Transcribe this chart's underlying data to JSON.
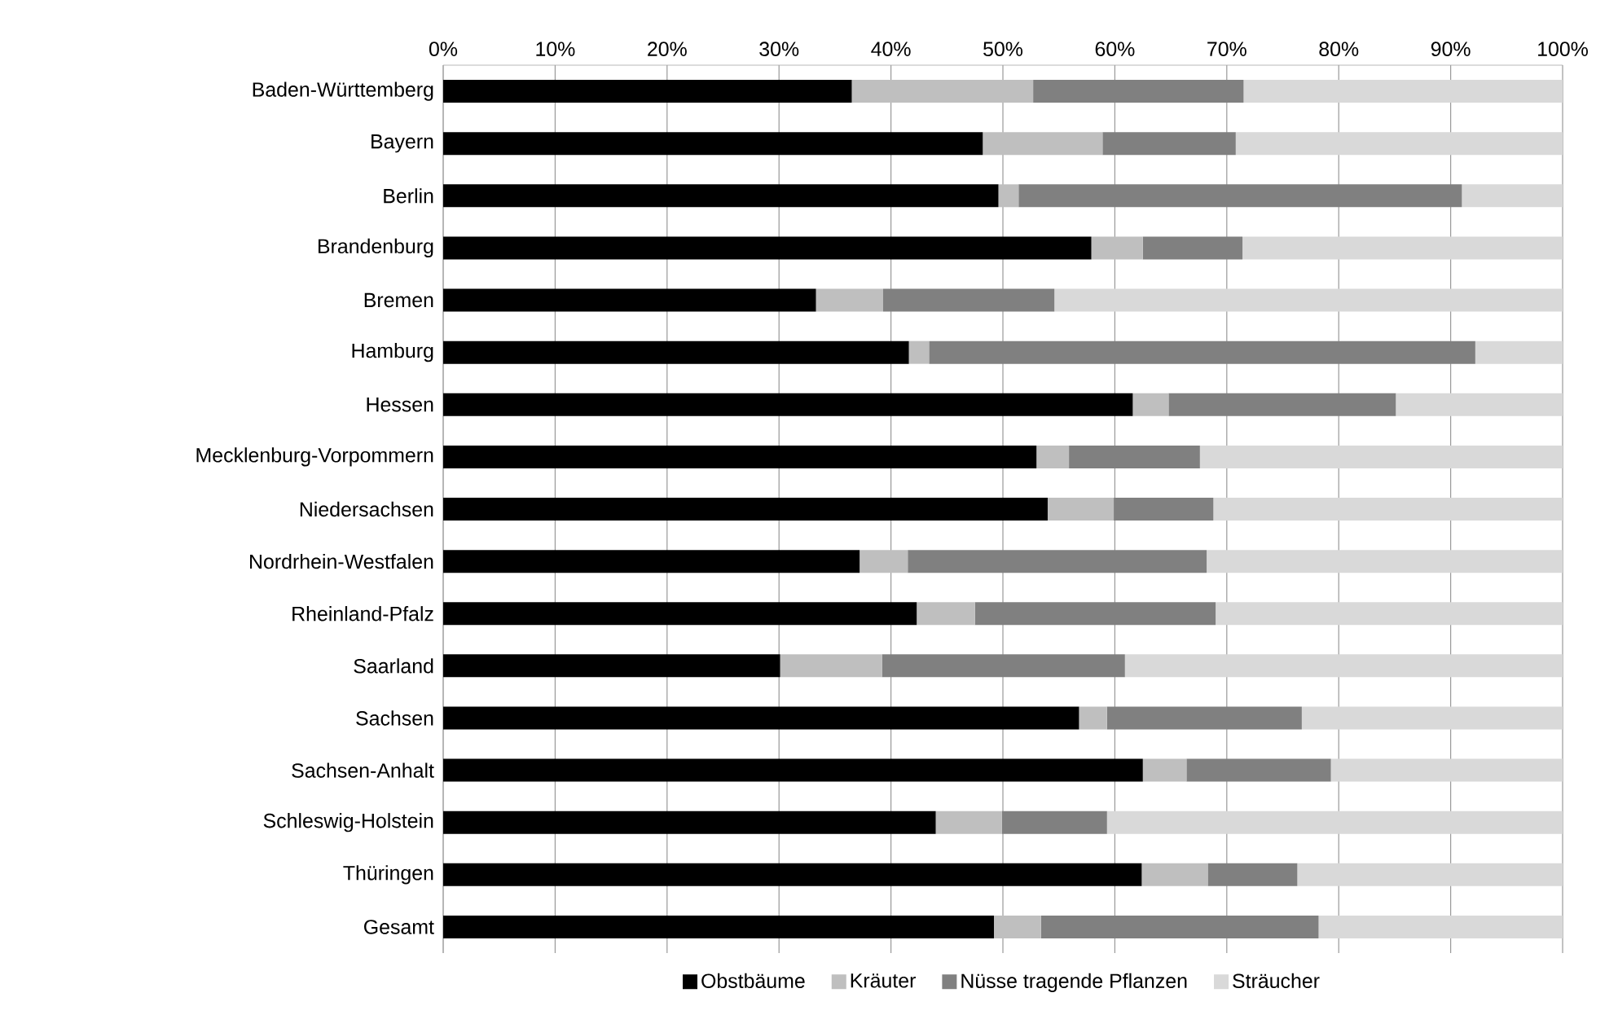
{
  "chart_data": {
    "type": "bar",
    "orientation": "horizontal",
    "stacked": true,
    "categories": [
      "Baden-Württemberg",
      "Bayern",
      "Berlin",
      "Brandenburg",
      "Bremen",
      "Hamburg",
      "Hessen",
      "Mecklenburg-Vorpommern",
      "Niedersachsen",
      "Nordrhein-Westfalen",
      "Rheinland-Pfalz",
      "Saarland",
      "Sachsen",
      "Sachsen-Anhalt",
      "Schleswig-Holstein",
      "Thüringen",
      "Gesamt"
    ],
    "series": [
      {
        "name": "Obstbäume",
        "color": "#000000",
        "values": [
          36.5,
          48.2,
          49.6,
          57.9,
          33.3,
          41.6,
          61.6,
          53.0,
          54.0,
          37.2,
          42.3,
          30.1,
          56.8,
          62.5,
          44.0,
          62.4,
          49.2
        ]
      },
      {
        "name": "Kräuter",
        "color": "#bfbfbf",
        "values": [
          16.2,
          10.7,
          1.8,
          4.6,
          6.0,
          1.8,
          3.2,
          2.9,
          5.9,
          4.3,
          5.2,
          9.1,
          2.5,
          3.9,
          5.9,
          5.9,
          4.2
        ]
      },
      {
        "name": "Nüsse tragende Pflanzen",
        "color": "#808080",
        "values": [
          18.8,
          11.9,
          39.6,
          8.9,
          15.3,
          48.8,
          20.3,
          11.7,
          8.9,
          26.7,
          21.5,
          21.7,
          17.4,
          12.9,
          9.4,
          8.0,
          24.8
        ]
      },
      {
        "name": "Sträucher",
        "color": "#d9d9d9",
        "values": [
          28.5,
          29.2,
          9.0,
          28.6,
          45.4,
          7.8,
          14.9,
          32.4,
          31.2,
          31.8,
          31.0,
          39.1,
          23.3,
          20.7,
          40.7,
          23.7,
          21.8
        ]
      }
    ],
    "xlim": [
      0,
      100
    ],
    "xticks": [
      {
        "value": 0,
        "label": "0%"
      },
      {
        "value": 10,
        "label": "10%"
      },
      {
        "value": 20,
        "label": "20%"
      },
      {
        "value": 30,
        "label": "30%"
      },
      {
        "value": 40,
        "label": "40%"
      },
      {
        "value": 50,
        "label": "50%"
      },
      {
        "value": 60,
        "label": "60%"
      },
      {
        "value": 70,
        "label": "70%"
      },
      {
        "value": 80,
        "label": "80%"
      },
      {
        "value": 90,
        "label": "90%"
      },
      {
        "value": 100,
        "label": "100%"
      }
    ],
    "grid": "x",
    "legend": "bottom"
  }
}
